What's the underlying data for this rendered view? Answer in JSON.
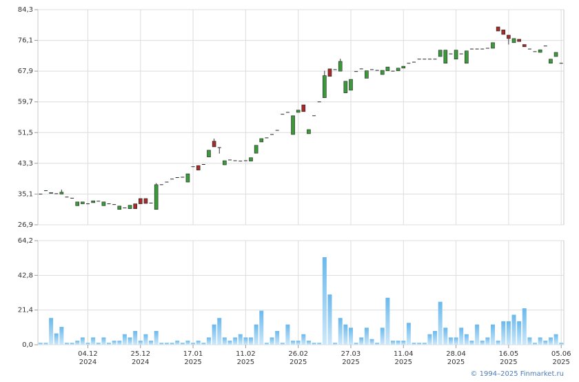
{
  "chart_data": [
    {
      "type": "candlestick",
      "up_color": "#3a9a3a",
      "down_color": "#a52a2a",
      "grid": true,
      "ylim": [
        26.9,
        84.3
      ],
      "yticks": [
        {
          "value": 26.9,
          "label": "26,9"
        },
        {
          "value": 35.1,
          "label": "35,1"
        },
        {
          "value": 43.3,
          "label": "43,3"
        },
        {
          "value": 51.5,
          "label": "51,5"
        },
        {
          "value": 59.7,
          "label": "59,7"
        },
        {
          "value": 67.9,
          "label": "67,9"
        },
        {
          "value": 76.1,
          "label": "76,1"
        },
        {
          "value": 84.3,
          "label": "84,3"
        }
      ],
      "open": [
        35.1,
        36.0,
        35.3,
        35.2,
        35.1,
        34.3,
        34.0,
        32.0,
        32.5,
        32.5,
        32.8,
        33.2,
        32.0,
        32.5,
        32.3,
        31.0,
        31.4,
        31.2,
        32.5,
        33.9,
        33.9,
        32.7,
        31.0,
        37.6,
        38.3,
        39.1,
        39.5,
        39.6,
        38.3,
        42.4,
        42.7,
        43.0,
        45.0,
        49.2,
        47.5,
        42.9,
        44.2,
        44.0,
        43.9,
        44.0,
        43.9,
        46.0,
        49.0,
        50.1,
        51.0,
        52.1,
        56.4,
        56.9,
        51.0,
        56.9,
        58.9,
        51.2,
        56.0,
        59.7,
        60.8,
        68.5,
        68.3,
        67.9,
        62.1,
        62.8,
        67.8,
        68.5,
        66.0,
        68.3,
        68.1,
        67.0,
        68.0,
        67.9,
        68.0,
        68.7,
        70.0,
        70.3,
        71.1,
        71.1,
        71.1,
        71.1,
        71.8,
        70.0,
        72.5,
        71.1,
        72.5,
        70.0,
        73.8,
        73.8,
        73.8,
        74.0,
        74.0,
        79.7,
        78.9,
        77.5,
        75.5,
        76.4,
        75.0,
        73.8,
        73.1,
        72.9,
        74.6,
        70.0,
        71.8,
        70.0
      ],
      "high": [
        35.1,
        36.0,
        35.5,
        35.2,
        36.3,
        34.3,
        34.0,
        33.0,
        33.0,
        32.5,
        33.3,
        33.2,
        33.0,
        32.5,
        32.3,
        31.9,
        31.4,
        32.1,
        32.5,
        33.9,
        33.9,
        32.7,
        38.0,
        37.6,
        38.3,
        39.1,
        39.5,
        39.6,
        40.5,
        42.4,
        42.7,
        43.0,
        46.8,
        49.9,
        47.5,
        44.0,
        44.2,
        44.0,
        43.9,
        44.0,
        44.8,
        48.1,
        49.9,
        50.1,
        51.0,
        52.1,
        56.4,
        56.9,
        56.0,
        57.5,
        58.9,
        52.3,
        56.0,
        59.7,
        68.0,
        68.5,
        68.3,
        71.2,
        65.2,
        65.7,
        67.8,
        68.5,
        68.0,
        68.3,
        68.1,
        68.1,
        69.0,
        67.9,
        68.7,
        69.2,
        70.0,
        70.3,
        71.1,
        71.1,
        71.1,
        71.1,
        73.5,
        73.5,
        72.5,
        73.5,
        72.5,
        73.3,
        73.8,
        73.8,
        73.8,
        74.0,
        75.5,
        79.7,
        78.9,
        77.5,
        76.6,
        76.4,
        75.0,
        73.8,
        73.1,
        73.6,
        74.6,
        71.1,
        72.9,
        70.0
      ],
      "low": [
        35.1,
        36.0,
        35.3,
        35.2,
        35.1,
        34.3,
        34.0,
        32.0,
        32.5,
        32.5,
        32.8,
        33.2,
        32.0,
        32.5,
        32.3,
        31.0,
        31.4,
        31.2,
        31.2,
        32.5,
        32.6,
        32.7,
        31.0,
        37.6,
        38.3,
        39.1,
        39.5,
        39.6,
        38.3,
        42.4,
        41.5,
        43.0,
        45.0,
        47.7,
        45.9,
        42.9,
        44.2,
        44.0,
        43.9,
        44.0,
        43.9,
        46.0,
        49.0,
        50.1,
        51.0,
        52.1,
        56.4,
        56.9,
        51.0,
        56.9,
        57.1,
        51.2,
        56.0,
        59.7,
        60.8,
        66.5,
        68.3,
        67.9,
        62.1,
        62.8,
        67.8,
        68.5,
        66.0,
        68.3,
        68.1,
        67.0,
        68.0,
        67.9,
        68.0,
        68.7,
        70.0,
        70.3,
        71.1,
        71.1,
        71.1,
        71.1,
        71.8,
        70.0,
        72.5,
        71.1,
        72.5,
        70.0,
        73.8,
        73.8,
        73.8,
        74.0,
        74.0,
        78.6,
        77.7,
        75.0,
        75.5,
        75.8,
        74.4,
        73.8,
        73.1,
        72.9,
        74.6,
        70.0,
        71.8,
        70.0
      ],
      "close": [
        35.1,
        36.0,
        35.5,
        35.2,
        35.6,
        34.3,
        34.0,
        33.0,
        33.0,
        32.5,
        33.3,
        33.2,
        33.0,
        32.5,
        32.3,
        31.9,
        31.4,
        32.1,
        31.2,
        32.5,
        32.6,
        32.7,
        37.6,
        37.6,
        38.3,
        39.1,
        39.5,
        39.6,
        40.5,
        42.4,
        41.5,
        43.0,
        46.8,
        47.7,
        47.5,
        44.0,
        44.2,
        44.0,
        43.9,
        44.0,
        44.8,
        48.1,
        49.9,
        50.1,
        51.0,
        52.1,
        56.4,
        56.9,
        56.0,
        57.5,
        57.1,
        52.3,
        56.0,
        59.7,
        66.7,
        66.5,
        68.3,
        70.5,
        65.2,
        65.7,
        67.8,
        68.5,
        68.0,
        68.3,
        68.1,
        68.1,
        69.0,
        67.9,
        68.7,
        69.2,
        70.0,
        70.3,
        71.1,
        71.1,
        71.1,
        71.1,
        73.5,
        73.5,
        72.5,
        73.5,
        72.5,
        73.3,
        73.8,
        73.8,
        73.8,
        74.0,
        75.5,
        78.6,
        77.7,
        76.6,
        76.6,
        75.8,
        74.4,
        73.8,
        73.1,
        73.6,
        74.6,
        71.1,
        72.9,
        70.0
      ]
    },
    {
      "type": "bar",
      "color": "#8ecbf0",
      "grid": true,
      "ylim": [
        0,
        64.2
      ],
      "yticks": [
        {
          "value": 0,
          "label": "0,0"
        },
        {
          "value": 21.4,
          "label": "21,4"
        },
        {
          "value": 42.8,
          "label": "42,8"
        },
        {
          "value": 64.2,
          "label": "64,2"
        }
      ],
      "categories": [
        null,
        null,
        null,
        null,
        null,
        null,
        null,
        null,
        null,
        "04.12 2024",
        null,
        null,
        null,
        null,
        null,
        null,
        null,
        null,
        null,
        "25.12 2024",
        null,
        null,
        null,
        null,
        null,
        null,
        null,
        null,
        null,
        "17.01 2025",
        null,
        null,
        null,
        null,
        null,
        null,
        null,
        null,
        null,
        "11.02 2025",
        null,
        null,
        null,
        null,
        null,
        null,
        null,
        null,
        null,
        "26.02 2025",
        null,
        null,
        null,
        null,
        null,
        null,
        null,
        null,
        null,
        "27.03 2025",
        null,
        null,
        null,
        null,
        null,
        null,
        null,
        null,
        null,
        "11.04 2025",
        null,
        null,
        null,
        null,
        null,
        null,
        null,
        null,
        null,
        "28.04 2025",
        null,
        null,
        null,
        null,
        null,
        null,
        null,
        null,
        null,
        "16.05 2025",
        null,
        null,
        null,
        null,
        null,
        null,
        null,
        null,
        null,
        "05.06 2025"
      ],
      "values": [
        1.2,
        1.2,
        16.5,
        7,
        11,
        1.2,
        1.2,
        2.5,
        4.5,
        1.2,
        4.5,
        1.2,
        4.5,
        1.2,
        2.5,
        2.5,
        6.5,
        4.5,
        8.5,
        2.5,
        6.5,
        2.5,
        8.5,
        1.2,
        1.2,
        1.2,
        2.5,
        1.2,
        2.5,
        1.2,
        2.5,
        1.2,
        4.5,
        12.5,
        16.5,
        4.5,
        2.5,
        4.5,
        6.5,
        4.5,
        4.5,
        12.5,
        21,
        1.2,
        4.5,
        8.5,
        1.2,
        12.5,
        2.5,
        2.5,
        6.5,
        2.5,
        1.2,
        1.2,
        54,
        31,
        1.2,
        16.5,
        12.5,
        10.5,
        1.2,
        4.5,
        10.5,
        3.5,
        1.2,
        10.5,
        29,
        2.5,
        2.5,
        2.5,
        13.5,
        1.2,
        1.2,
        1.2,
        6.5,
        8.5,
        26.5,
        10.5,
        4.5,
        4.5,
        10.5,
        6.5,
        2.5,
        12.5,
        2.5,
        4.5,
        12.5,
        2.5,
        14.5,
        14.5,
        18.5,
        14.5,
        22.5,
        4.5,
        1.2,
        4.5,
        2.5,
        4.5,
        6.5,
        1.2
      ]
    }
  ],
  "credit": "© 1994–2025 Finmarket.ru"
}
